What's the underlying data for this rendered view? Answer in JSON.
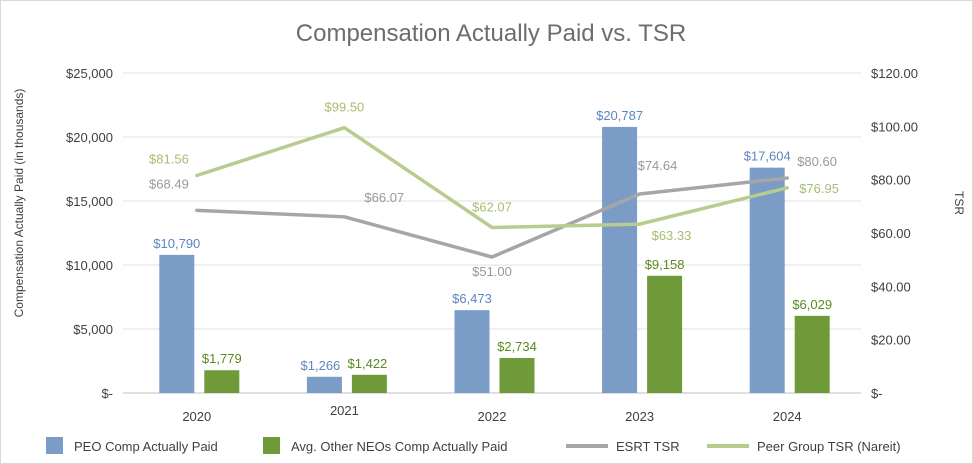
{
  "chart_data": {
    "type": "bar",
    "title": "Compensation Actually Paid vs. TSR",
    "ylabel": "Compensation Actually Paid (in thousands)",
    "y2label": "TSR",
    "categories": [
      "2020",
      "2021",
      "2022",
      "2023",
      "2024"
    ],
    "ylim": [
      0,
      25000
    ],
    "y2lim": [
      0,
      120
    ],
    "y_ticks": [
      {
        "value": 0,
        "label": "$-"
      },
      {
        "value": 5000,
        "label": "$5,000"
      },
      {
        "value": 10000,
        "label": "$10,000"
      },
      {
        "value": 15000,
        "label": "$15,000"
      },
      {
        "value": 20000,
        "label": "$20,000"
      },
      {
        "value": 25000,
        "label": "$25,000"
      }
    ],
    "y2_ticks": [
      {
        "value": 0,
        "label": "$-"
      },
      {
        "value": 20,
        "label": "$20.00"
      },
      {
        "value": 40,
        "label": "$40.00"
      },
      {
        "value": 60,
        "label": "$60.00"
      },
      {
        "value": 80,
        "label": "$80.00"
      },
      {
        "value": 100,
        "label": "$100.00"
      },
      {
        "value": 120,
        "label": "$120.00"
      }
    ],
    "grid": true,
    "legend_position": "bottom",
    "series": [
      {
        "name": "PEO Comp Actually Paid",
        "kind": "bar",
        "axis": "left",
        "color": "#7a9cc6",
        "values": [
          10790,
          1266,
          6473,
          20787,
          17604
        ],
        "labels": [
          "$10,790",
          "$1,266",
          "$6,473",
          "$20,787",
          "$17,604"
        ]
      },
      {
        "name": "Avg. Other NEOs Comp Actually Paid",
        "kind": "bar",
        "axis": "left",
        "color": "#6f9a3a",
        "values": [
          1779,
          1422,
          2734,
          9158,
          6029
        ],
        "labels": [
          "$1,779",
          "$1,422",
          "$2,734",
          "$9,158",
          "$6,029"
        ]
      },
      {
        "name": "ESRT TSR",
        "kind": "line",
        "axis": "right",
        "color": "#a6a6a6",
        "values": [
          68.49,
          66.07,
          51.0,
          74.64,
          80.6
        ],
        "labels": [
          "$68.49",
          "$66.07",
          "$51.00",
          "$74.64",
          "$80.60"
        ]
      },
      {
        "name": "Peer Group TSR (Nareit)",
        "kind": "line",
        "axis": "right",
        "color": "#b8cc8f",
        "values": [
          81.56,
          99.5,
          62.07,
          63.33,
          76.95
        ],
        "labels": [
          "$81.56",
          "$99.50",
          "$62.07",
          "$63.33",
          "$76.95"
        ]
      }
    ]
  }
}
